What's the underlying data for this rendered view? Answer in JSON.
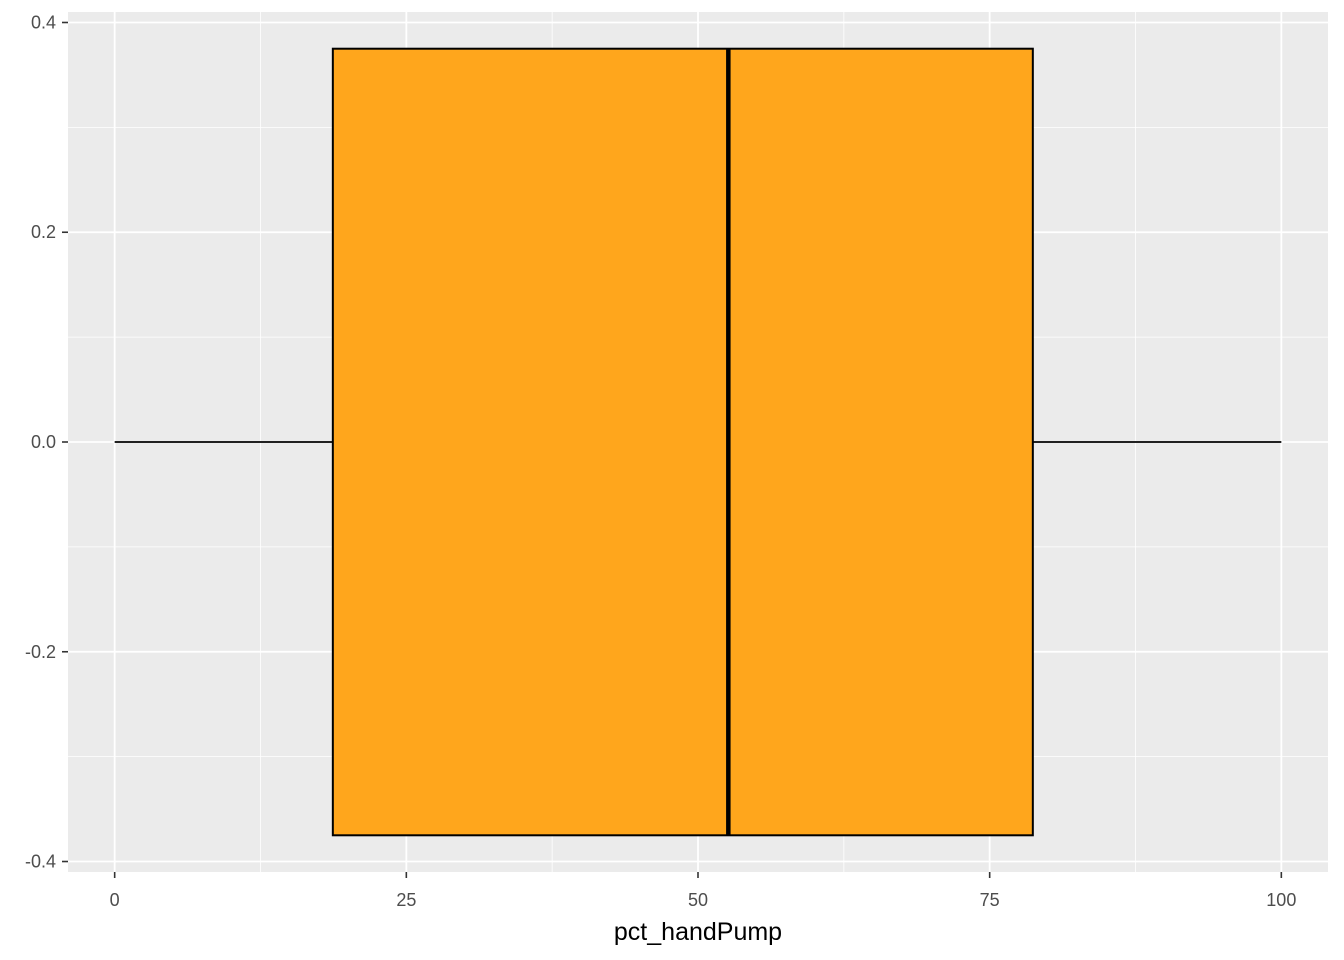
{
  "chart_data": {
    "type": "boxplot",
    "xlabel": "pct_handPump",
    "ylabel": "",
    "xlim": [
      -4,
      104
    ],
    "ylim": [
      -0.41,
      0.41
    ],
    "x_ticks": [
      0,
      25,
      50,
      75,
      100
    ],
    "x_tick_labels": [
      "0",
      "25",
      "50",
      "75",
      "100"
    ],
    "y_ticks": [
      -0.4,
      -0.2,
      0.0,
      0.2,
      0.4
    ],
    "y_tick_labels": [
      "-0.4",
      "-0.2",
      "0.0",
      "0.2",
      "0.4"
    ],
    "box": {
      "min": 0,
      "q1": 18.7,
      "median": 52.6,
      "q3": 78.7,
      "max": 100,
      "y_center": 0.0,
      "y_half_width": 0.375
    },
    "grid": true,
    "colors": {
      "panel_background": "#ebebeb",
      "grid_major": "#ffffff",
      "box_fill": "#ffa61c",
      "box_outline": "#000000",
      "whisker": "#000000"
    }
  }
}
